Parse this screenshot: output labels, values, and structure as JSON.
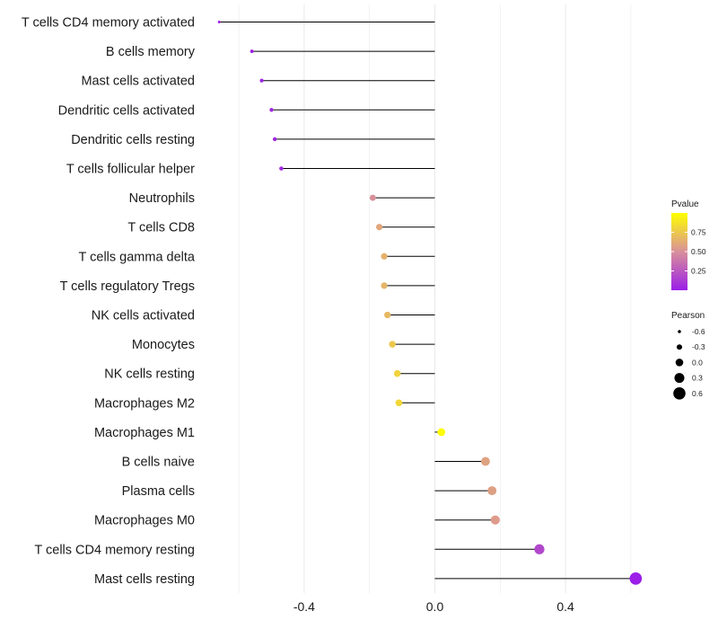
{
  "chart_data": {
    "type": "lollipop",
    "title": "",
    "xlabel": "",
    "ylabel": "",
    "xlim": [
      -0.67,
      0.65
    ],
    "x_ticks": [
      -0.4,
      0,
      0.4
    ],
    "x_tick_labels": [
      "-0.4",
      "0.0",
      "0.4"
    ],
    "grid": true,
    "categories": [
      "T cells CD4 memory activated",
      "B cells memory",
      "Mast cells activated",
      "Dendritic cells activated",
      "Dendritic cells resting",
      "T cells follicular helper",
      "Neutrophils",
      "T cells CD8",
      "T cells gamma delta",
      "T cells regulatory  Tregs",
      "NK cells activated",
      "Monocytes",
      "NK cells resting",
      "Macrophages M2",
      "Macrophages M1",
      "B cells naive",
      "Plasma cells",
      "Macrophages M0",
      "T cells CD4 memory resting",
      "Mast cells resting"
    ],
    "pearson": [
      -0.66,
      -0.56,
      -0.53,
      -0.5,
      -0.49,
      -0.47,
      -0.19,
      -0.17,
      -0.155,
      -0.155,
      -0.145,
      -0.13,
      -0.115,
      -0.11,
      0.02,
      0.155,
      0.175,
      0.185,
      0.32,
      0.615
    ],
    "pvalue": [
      0.001,
      0.01,
      0.02,
      0.03,
      0.04,
      0.05,
      0.5,
      0.6,
      0.65,
      0.66,
      0.68,
      0.75,
      0.8,
      0.82,
      0.99,
      0.58,
      0.57,
      0.55,
      0.18,
      0.001
    ],
    "legend": {
      "pvalue_title": "Pvalue",
      "pvalue_ticks": [
        0.75,
        0.5,
        0.25
      ],
      "pvalue_tick_labels": [
        "0.75",
        "0.50",
        "0.25"
      ],
      "pvalue_range": [
        0,
        1
      ],
      "pearson_title": "Pearson",
      "pearson_values": [
        -0.6,
        -0.3,
        0,
        0.3,
        0.6
      ],
      "pearson_labels": [
        "-0.6",
        "-0.3",
        "0.0",
        "0.3",
        "0.6"
      ],
      "placement": "right"
    },
    "colors": {
      "low": "#9b1fe8",
      "mid": "#d9909a",
      "high": "#ffff00",
      "stem": "#000000",
      "grid": "#ebebeb"
    }
  }
}
